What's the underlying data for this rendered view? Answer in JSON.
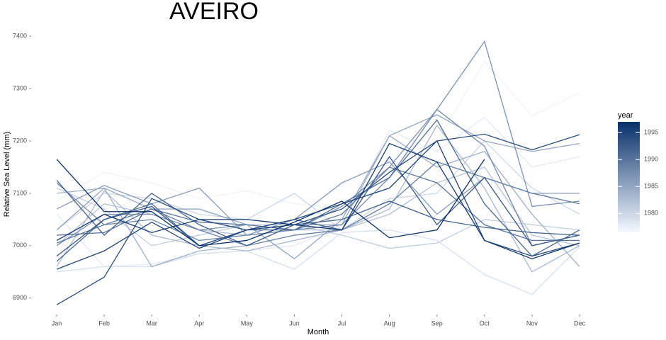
{
  "chart_data": {
    "type": "line",
    "title": "AVEIRO",
    "x_label": "Month",
    "y_label": "Relative Sea Level (mm)",
    "categories": [
      "Jan",
      "Feb",
      "Mar",
      "Apr",
      "May",
      "Jun",
      "Jul",
      "Aug",
      "Sep",
      "Oct",
      "Nov",
      "Dec"
    ],
    "ylim": [
      6874,
      7415
    ],
    "yticks": [
      6900,
      7000,
      7100,
      7200,
      7300,
      7400
    ],
    "grid": false,
    "colorbar": {
      "title": "year",
      "lim": [
        1976.5,
        1997
      ],
      "ticks": [
        1980,
        1985,
        1990,
        1995
      ],
      "low_color": "#f4f9fe",
      "high_color": "#08306b"
    },
    "series": [
      {
        "year": 1977,
        "values": [
          7085,
          7140,
          7120,
          7090,
          7105,
          7080,
          7070,
          7160,
          7200,
          7352,
          7248,
          7292
        ]
      },
      {
        "year": 1978,
        "values": [
          7060,
          6960,
          6965,
          6985,
          6990,
          7000,
          7040,
          7220,
          7180,
          7245,
          7150,
          7170
        ]
      },
      {
        "year": 1979,
        "values": [
          6950,
          6960,
          6960,
          6985,
          6990,
          6955,
          7025,
          7030,
          7010,
          6945,
          6907,
          6998
        ]
      },
      {
        "year": 1980,
        "values": [
          7030,
          7100,
          7090,
          7060,
          7050,
          7100,
          7030,
          7090,
          7100,
          7200,
          7110,
          7060
        ]
      },
      {
        "year": 1981,
        "values": [
          7110,
          7070,
          7000,
          7020,
          7040,
          7040,
          7020,
          6995,
          7005,
          7050,
          7040,
          7030
        ]
      },
      {
        "year": 1982,
        "values": [
          7000,
          7080,
          7060,
          7030,
          7020,
          7030,
          7030,
          7060,
          7120,
          7150,
          7020,
          7000
        ]
      },
      {
        "year": 1983,
        "values": [
          6960,
          7105,
          7020,
          7000,
          6990,
          7010,
          7030,
          7070,
          7230,
          7110,
          6950,
          7000
        ]
      },
      {
        "year": 1984,
        "values": [
          7100,
          7110,
          6960,
          6990,
          7000,
          7040,
          7040,
          7210,
          7150,
          7180,
          7060,
          6960
        ]
      },
      {
        "year": 1985,
        "values": [
          7030,
          7110,
          7070,
          7070,
          7040,
          6975,
          7050,
          7210,
          7250,
          7200,
          7180,
          7195
        ]
      },
      {
        "year": 1986,
        "values": [
          7070,
          7115,
          7080,
          7110,
          7020,
          7050,
          7120,
          7160,
          7060,
          7130,
          7100,
          7100
        ]
      },
      {
        "year": 1987,
        "values": [
          7000,
          7060,
          7060,
          7030,
          7040,
          7030,
          7075,
          7150,
          7260,
          7390,
          7075,
          7085
        ]
      },
      {
        "year": 1988,
        "values": [
          7120,
          7040,
          7050,
          7010,
          7020,
          7030,
          7040,
          7130,
          7260,
          7190,
          7000,
          7020
        ]
      },
      {
        "year": 1989,
        "values": [
          7005,
          7040,
          7070,
          7030,
          7000,
          7020,
          7030,
          7080,
          7160,
          7130,
          7100,
          7080
        ]
      },
      {
        "year": 1990,
        "values": [
          7020,
          7025,
          7070,
          7045,
          7040,
          7030,
          7060,
          7150,
          7120,
          7040,
          7010,
          7010
        ]
      },
      {
        "year": 1991,
        "values": [
          6970,
          7050,
          7080,
          7000,
          7030,
          7030,
          7080,
          7130,
          7240,
          7080,
          6980,
          7030
        ]
      },
      {
        "year": 1992,
        "values": [
          7125,
          7020,
          7100,
          7040,
          7000,
          7040,
          7050,
          7085,
          7050,
          7035,
          7025,
          7020
        ]
      },
      {
        "year": 1993,
        "values": [
          6980,
          7050,
          7075,
          7000,
          7030,
          7050,
          7030,
          7170,
          7040,
          7130,
          7000,
          7020
        ]
      },
      {
        "year": 1994,
        "values": [
          6887,
          6940,
          7090,
          7050,
          7030,
          7040,
          7070,
          7140,
          7200,
          7213,
          7183,
          7212
        ]
      },
      {
        "year": 1995,
        "values": [
          6955,
          6990,
          7045,
          6995,
          7030,
          7050,
          7080,
          7110,
          7200,
          7010,
          6980,
          7005
        ]
      },
      {
        "year": 1996,
        "values": [
          7010,
          7060,
          7025,
          7050,
          7050,
          7040,
          7030,
          7195,
          7160,
          7010,
          6975,
          7005
        ]
      },
      {
        "year": 1997,
        "values": [
          7165,
          7065,
          7065,
          7000,
          7010,
          7045,
          7085,
          7015,
          7030,
          7165,
          null,
          null
        ]
      }
    ]
  }
}
